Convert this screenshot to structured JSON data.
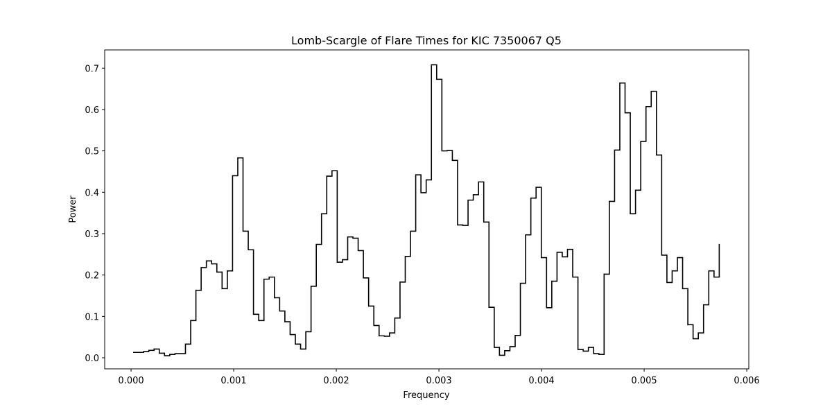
{
  "chart_data": {
    "type": "step",
    "title": "Lomb-Scargle of Flare Times for KIC 7350067 Q5",
    "x_label": "Frequency",
    "y_label": "Power",
    "color": "#000000",
    "x": [
      2e-05,
      7.1e-05,
      0.000122,
      0.000173,
      0.000224,
      0.000275,
      0.000326,
      0.000377,
      0.000428,
      0.000479,
      0.00053,
      0.000581,
      0.000632,
      0.000683,
      0.000734,
      0.000785,
      0.000836,
      0.000887,
      0.000938,
      0.000989,
      0.00104,
      0.001091,
      0.001142,
      0.001193,
      0.001244,
      0.001295,
      0.001346,
      0.001397,
      0.001448,
      0.001499,
      0.00155,
      0.001601,
      0.001652,
      0.001703,
      0.001754,
      0.001805,
      0.001856,
      0.001907,
      0.001958,
      0.002009,
      0.00206,
      0.002111,
      0.002162,
      0.002213,
      0.002264,
      0.002315,
      0.002366,
      0.002417,
      0.002468,
      0.002519,
      0.00257,
      0.002621,
      0.002672,
      0.002723,
      0.002774,
      0.002825,
      0.002876,
      0.002927,
      0.002978,
      0.003029,
      0.00308,
      0.003131,
      0.003182,
      0.003233,
      0.003284,
      0.003335,
      0.003386,
      0.003437,
      0.003488,
      0.003539,
      0.00359,
      0.003641,
      0.003692,
      0.003743,
      0.003794,
      0.003845,
      0.003896,
      0.003947,
      0.003998,
      0.004049,
      0.0041,
      0.004151,
      0.004202,
      0.004253,
      0.004304,
      0.004355,
      0.004406,
      0.004457,
      0.004508,
      0.004559,
      0.00461,
      0.004661,
      0.004712,
      0.004763,
      0.004814,
      0.004865,
      0.004916,
      0.004967,
      0.005018,
      0.005069,
      0.00512,
      0.005171,
      0.005222,
      0.005273,
      0.005324,
      0.005375,
      0.005426,
      0.005477,
      0.005528,
      0.005579,
      0.00563,
      0.005681,
      0.005732
    ],
    "values": [
      0.013,
      0.013,
      0.015,
      0.018,
      0.021,
      0.011,
      0.005,
      0.008,
      0.01,
      0.01,
      0.033,
      0.09,
      0.163,
      0.218,
      0.234,
      0.227,
      0.207,
      0.167,
      0.21,
      0.44,
      0.483,
      0.306,
      0.261,
      0.105,
      0.09,
      0.19,
      0.195,
      0.145,
      0.113,
      0.087,
      0.056,
      0.033,
      0.021,
      0.063,
      0.173,
      0.274,
      0.348,
      0.439,
      0.452,
      0.231,
      0.237,
      0.292,
      0.289,
      0.259,
      0.193,
      0.125,
      0.078,
      0.053,
      0.052,
      0.06,
      0.096,
      0.183,
      0.245,
      0.306,
      0.442,
      0.399,
      0.43,
      0.708,
      0.673,
      0.5,
      0.501,
      0.477,
      0.321,
      0.32,
      0.381,
      0.394,
      0.425,
      0.328,
      0.122,
      0.025,
      0.006,
      0.017,
      0.027,
      0.054,
      0.18,
      0.297,
      0.386,
      0.412,
      0.242,
      0.121,
      0.185,
      0.255,
      0.244,
      0.262,
      0.195,
      0.02,
      0.016,
      0.025,
      0.01,
      0.008,
      0.202,
      0.378,
      0.502,
      0.664,
      0.592,
      0.348,
      0.405,
      0.523,
      0.607,
      0.644,
      0.49,
      0.248,
      0.182,
      0.21,
      0.242,
      0.167,
      0.08,
      0.046,
      0.06,
      0.128,
      0.21,
      0.195,
      0.275
    ],
    "xlim": [
      -0.000257,
      0.00602
    ],
    "ylim": [
      -0.0268,
      0.744
    ],
    "xticks": [
      {
        "value": 0,
        "label": "0.000"
      },
      {
        "value": 0.001,
        "label": "0.001"
      },
      {
        "value": 0.002,
        "label": "0.002"
      },
      {
        "value": 0.003,
        "label": "0.003"
      },
      {
        "value": 0.004,
        "label": "0.004"
      },
      {
        "value": 0.005,
        "label": "0.005"
      },
      {
        "value": 0.006,
        "label": "0.006"
      }
    ],
    "yticks": [
      {
        "value": 0,
        "label": "0.0"
      },
      {
        "value": 0.1,
        "label": "0.1"
      },
      {
        "value": 0.2,
        "label": "0.2"
      },
      {
        "value": 0.3,
        "label": "0.3"
      },
      {
        "value": 0.4,
        "label": "0.4"
      },
      {
        "value": 0.5,
        "label": "0.5"
      },
      {
        "value": 0.6,
        "label": "0.6"
      },
      {
        "value": 0.7,
        "label": "0.7"
      }
    ],
    "grid": false
  }
}
